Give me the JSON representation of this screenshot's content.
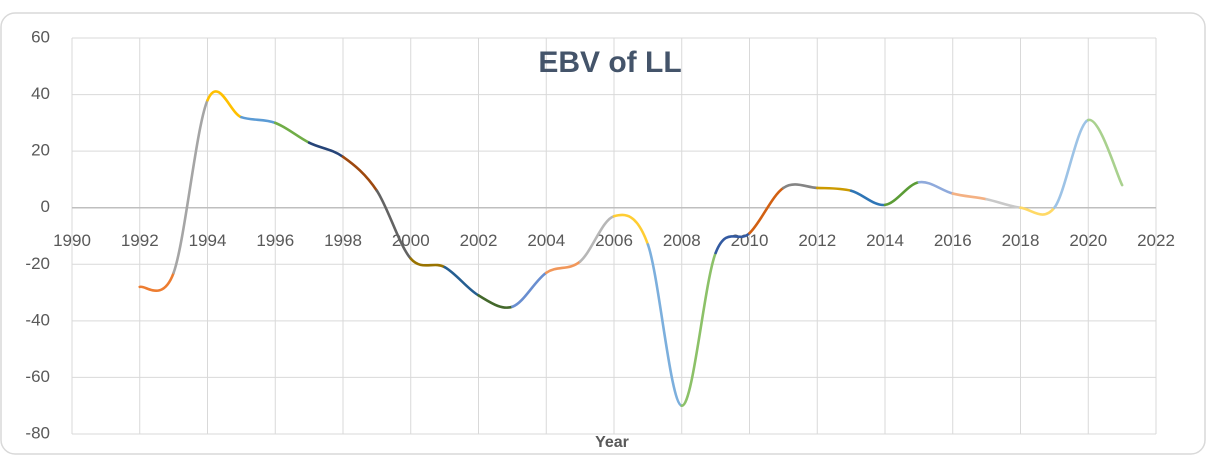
{
  "chart_data": {
    "type": "line",
    "title": "EBV of LL",
    "x_label": "Year",
    "x": [
      1992,
      1993,
      1994,
      1995,
      1996,
      1997,
      1998,
      1999,
      2000,
      2001,
      2002,
      2003,
      2004,
      2005,
      2006,
      2007,
      2008,
      2009,
      2010,
      2011,
      2012,
      2013,
      2014,
      2015,
      2016,
      2017,
      2018,
      2019,
      2020,
      2021
    ],
    "series": [
      {
        "values": [
          -28,
          -23,
          38,
          32,
          30,
          23,
          18,
          6,
          -18,
          -21,
          -31,
          -35,
          -23,
          -19,
          -3,
          -13,
          -70,
          -16,
          -9,
          7,
          7,
          6,
          1,
          9,
          5,
          3,
          0,
          0,
          31,
          8
        ],
        "colors": [
          "#ed7d31",
          "#a5a5a5",
          "#ffc000",
          "#5b9bd5",
          "#70ad47",
          "#264478",
          "#9e480e",
          "#636363",
          "#997300",
          "#255e91",
          "#43682b",
          "#698ed0",
          "#f1975a",
          "#b7b7b7",
          "#ffcd33",
          "#7cafdd",
          "#8cc168",
          "#335aa1",
          "#d26012",
          "#848484",
          "#cc9a00",
          "#2e75b6",
          "#5b9c36",
          "#8faadc",
          "#f4b183",
          "#c9c9c9",
          "#ffd966",
          "#9dc3e6",
          "#a9d18e"
        ]
      }
    ],
    "xlim": [
      1990,
      2022
    ],
    "ylim": [
      -80,
      60
    ],
    "xticks": [
      1990,
      1992,
      1994,
      1996,
      1998,
      2000,
      2002,
      2004,
      2006,
      2008,
      2010,
      2012,
      2014,
      2016,
      2018,
      2020,
      2022
    ],
    "yticks": [
      -80,
      -60,
      -40,
      -20,
      0,
      20,
      40,
      60
    ],
    "grid": true,
    "smooth": true
  }
}
